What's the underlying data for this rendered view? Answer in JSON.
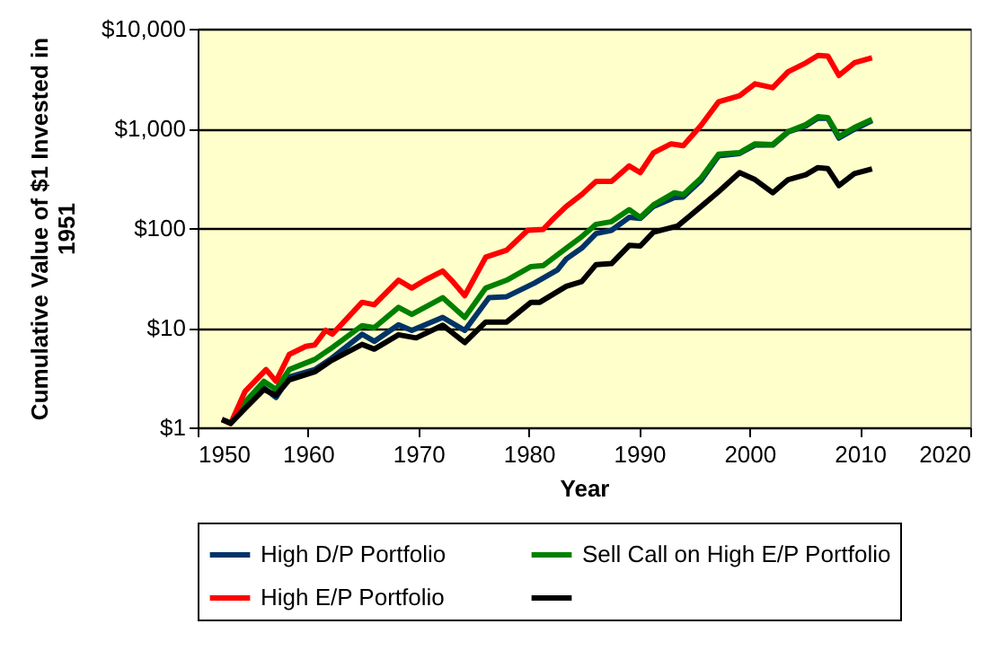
{
  "chart_data": {
    "type": "line",
    "xlabel": "Year",
    "ylabel": "Cumulative Value of $1 Invested in 1951",
    "log": "y",
    "grid": "y",
    "legend": "bottom",
    "line_style": "solid",
    "marker": "none",
    "xlim": [
      1950,
      2020
    ],
    "xticks": [
      1950,
      1960,
      1970,
      1980,
      1990,
      2000,
      2010,
      2020
    ],
    "ylim": [
      1,
      10000
    ],
    "yticks": [
      {
        "value": 1,
        "label": "$1"
      },
      {
        "value": 10,
        "label": "$10"
      },
      {
        "value": 100,
        "label": "$100"
      },
      {
        "value": 1000,
        "label": "$1,000"
      },
      {
        "value": 10000,
        "label": "$10,000"
      }
    ],
    "series": [
      {
        "name": "High D/P Portfolio",
        "color": "#003366",
        "x": [
          1954.3,
          1956,
          1957.1,
          1958.3,
          1960.6,
          1962,
          1964.9,
          1966,
          1968.2,
          1969.4,
          1972.2,
          1974.2,
          1976.4,
          1978,
          1980.5,
          1982.6,
          1983.4,
          1984.8,
          1986.1,
          1987.5,
          1989.1,
          1990.1,
          1991.3,
          1993.2,
          1994,
          1995.6,
          1997.2,
          1999.1,
          2000.5,
          2002.1,
          2003.5,
          2005.1,
          2006.2,
          2007.1,
          2008.1,
          2009.5,
          2011.1
        ],
        "values": [
          1.6,
          2.5,
          2.0,
          3.2,
          3.8,
          4.8,
          8.6,
          7.3,
          10.7,
          9.4,
          12.7,
          9.4,
          20,
          20.5,
          28,
          38,
          49,
          63,
          88,
          95,
          128,
          125,
          165,
          202,
          205,
          300,
          530,
          560,
          680,
          680,
          920,
          1060,
          1270,
          1260,
          800,
          980,
          1200
        ]
      },
      {
        "name": "Sell Call on High E/P Portfolio",
        "color": "#008000",
        "x": [
          1952.2,
          1953,
          1954.3,
          1956,
          1957.1,
          1958.3,
          1960.6,
          1962,
          1964.9,
          1966,
          1968.2,
          1969.4,
          1972.2,
          1974.2,
          1976.1,
          1978,
          1980.2,
          1981.3,
          1983.4,
          1984.8,
          1986.1,
          1987.5,
          1989.1,
          1990.1,
          1991.3,
          1993.2,
          1994,
          1995.6,
          1997.2,
          1999.1,
          2000.5,
          2002.1,
          2003.5,
          2005.1,
          2006.2,
          2007.1,
          2008.1,
          2009.5,
          2011.1
        ],
        "values": [
          1.2,
          1.1,
          1.8,
          2.9,
          2.4,
          3.8,
          4.8,
          6.1,
          10.5,
          10,
          16,
          13.6,
          20,
          12.7,
          25,
          30,
          41,
          42,
          63,
          82,
          109,
          116,
          153,
          128,
          171,
          226,
          217,
          316,
          550,
          570,
          700,
          690,
          930,
          1090,
          1310,
          1280,
          830,
          1020,
          1230
        ]
      },
      {
        "name": "High E/P Portfolio",
        "color": "#ff0000",
        "x": [
          1952.2,
          1953,
          1954.3,
          1956.2,
          1957.1,
          1958.3,
          1959.8,
          1960.6,
          1961.6,
          1962.2,
          1964.9,
          1966,
          1968.2,
          1969.4,
          1970.6,
          1972.2,
          1973,
          1974.2,
          1976.1,
          1978,
          1979.9,
          1981.3,
          1982.1,
          1983.4,
          1984.8,
          1986.1,
          1987.5,
          1989.1,
          1990.1,
          1991.3,
          1992.9,
          1994,
          1995.6,
          1997.2,
          1999.1,
          2000.5,
          2002.1,
          2003.5,
          2005.1,
          2006.2,
          2007.1,
          2008.1,
          2009.5,
          2011.1
        ],
        "values": [
          1.2,
          1.1,
          2.3,
          3.8,
          2.9,
          5.4,
          6.5,
          6.7,
          9.4,
          8.6,
          18,
          17,
          30,
          25,
          30,
          37,
          30,
          21,
          51,
          60,
          95,
          97,
          120,
          165,
          217,
          294,
          294,
          420,
          360,
          570,
          700,
          670,
          1070,
          1850,
          2130,
          2800,
          2560,
          3700,
          4540,
          5400,
          5300,
          3400,
          4550,
          5100
        ]
      },
      {
        "color": "#000000",
        "x": [
          1952.2,
          1953,
          1954.3,
          1956,
          1957.1,
          1958.3,
          1960.6,
          1962,
          1964.9,
          1966,
          1968.2,
          1969.8,
          1972.2,
          1974.2,
          1976.1,
          1978,
          1980.2,
          1981,
          1983.4,
          1984.8,
          1986.1,
          1987.5,
          1989.1,
          1990.1,
          1991.3,
          1993.5,
          1995.6,
          1997.2,
          1999.1,
          2000.5,
          2002.1,
          2003.5,
          2005.1,
          2006.2,
          2007.1,
          2008.1,
          2009.5,
          2011.1
        ],
        "values": [
          1.2,
          1.1,
          1.55,
          2.4,
          2.1,
          3.0,
          3.6,
          4.6,
          6.8,
          6.1,
          8.5,
          7.9,
          10.6,
          7.1,
          11.4,
          11.4,
          18,
          18,
          26,
          29,
          43,
          44,
          67,
          66,
          91,
          105,
          164,
          232,
          360,
          306,
          226,
          306,
          343,
          404,
          395,
          267,
          352,
          393
        ]
      }
    ]
  }
}
